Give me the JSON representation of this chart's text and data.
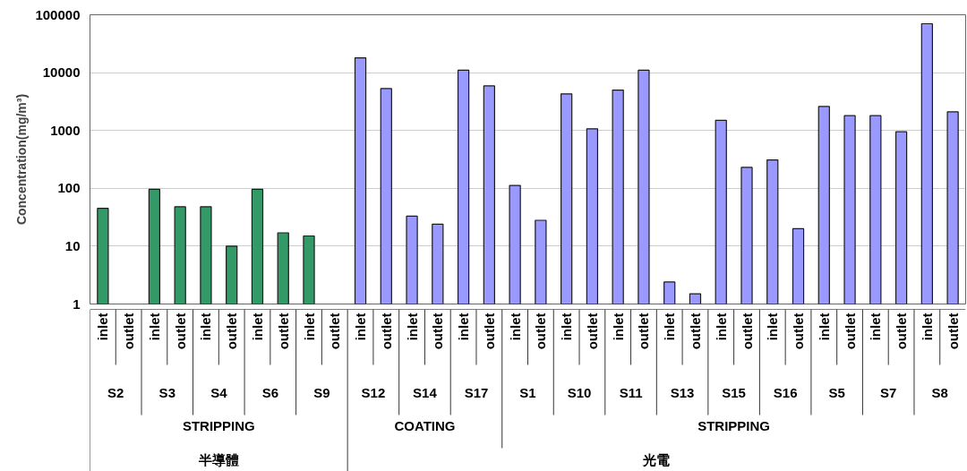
{
  "chart_data": {
    "type": "bar",
    "ylabel": "Concentration(mg/m³)",
    "log": true,
    "grid": "y",
    "categories": [
      "inlet",
      "outlet",
      "inlet",
      "outlet",
      "inlet",
      "outlet",
      "inlet",
      "outlet",
      "inlet",
      "outlet",
      "inlet",
      "outlet",
      "inlet",
      "outlet",
      "inlet",
      "outlet",
      "inlet",
      "outlet",
      "inlet",
      "outlet",
      "inlet",
      "outlet",
      "inlet",
      "outlet",
      "inlet",
      "outlet",
      "inlet",
      "outlet",
      "inlet",
      "outlet",
      "inlet",
      "outlet",
      "inlet",
      "outlet"
    ],
    "values": [
      45,
      null,
      96,
      48,
      48,
      10,
      96,
      17,
      15,
      null,
      18000,
      5300,
      33,
      24,
      11000,
      5900,
      112,
      28,
      4300,
      1070,
      5000,
      11000,
      2.4,
      1.5,
      1500,
      230,
      310,
      20,
      2600,
      1800,
      1800,
      950,
      70000,
      2100
    ],
    "colors": [
      "#339966",
      "#339966",
      "#339966",
      "#339966",
      "#339966",
      "#339966",
      "#339966",
      "#339966",
      "#339966",
      "#339966",
      "#9999ff",
      "#9999ff",
      "#9999ff",
      "#9999ff",
      "#9999ff",
      "#9999ff",
      "#9999ff",
      "#9999ff",
      "#9999ff",
      "#9999ff",
      "#9999ff",
      "#9999ff",
      "#9999ff",
      "#9999ff",
      "#9999ff",
      "#9999ff",
      "#9999ff",
      "#9999ff",
      "#9999ff",
      "#9999ff",
      "#9999ff",
      "#9999ff",
      "#9999ff",
      "#9999ff"
    ],
    "annotations": [
      "S2",
      "S3",
      "S4",
      "S6",
      "S9",
      "S12",
      "S14",
      "S17",
      "S1",
      "S10",
      "S11",
      "S13",
      "S15",
      "S16",
      "S5",
      "S7",
      "S8",
      "STRIPPING",
      "COATING",
      "STRIPPING",
      "半導體",
      "光電"
    ],
    "ylim": [
      1,
      100000
    ],
    "yticks": [
      1,
      10,
      100,
      1000,
      10000,
      100000
    ]
  }
}
